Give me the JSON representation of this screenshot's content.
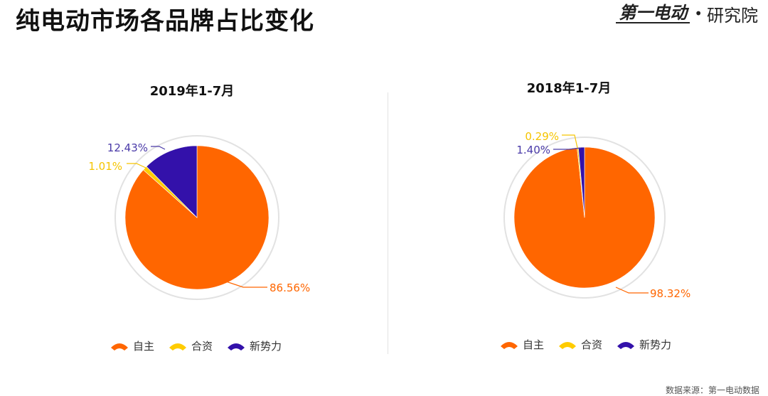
{
  "header": {
    "title": "纯电动市场各品牌占比变化",
    "logo_mark": "第一电动",
    "logo_text": "研究院"
  },
  "colors": {
    "自主": "#ff6600",
    "合资": "#ffcc00",
    "新势力": "#3311aa",
    "ring": "#e2e2e2",
    "label_自主": "#ff6600",
    "label_合资": "#f5c400",
    "label_新势力": "#4a3aa8"
  },
  "legend_items": [
    "自主",
    "合资",
    "新势力"
  ],
  "chart_data": [
    {
      "type": "pie",
      "title": "2019年1-7月",
      "series": [
        {
          "name": "自主",
          "value": 86.56,
          "label": "86.56%"
        },
        {
          "name": "合资",
          "value": 1.01,
          "label": "1.01%"
        },
        {
          "name": "新势力",
          "value": 12.43,
          "label": "12.43%"
        }
      ],
      "legend": "bottom"
    },
    {
      "type": "pie",
      "title": "2018年1-7月",
      "series": [
        {
          "name": "自主",
          "value": 98.32,
          "label": "98.32%"
        },
        {
          "name": "合资",
          "value": 0.29,
          "label": "0.29%"
        },
        {
          "name": "新势力",
          "value": 1.4,
          "label": "1.40%"
        }
      ],
      "legend": "bottom"
    }
  ],
  "source_text": "数据来源：第一电动数据"
}
